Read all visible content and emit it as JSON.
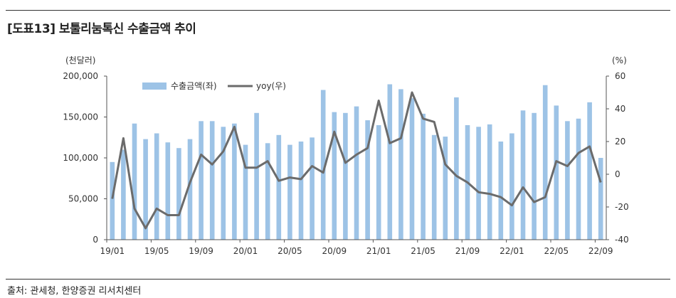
{
  "header": {
    "title": "[도표13] 보툴리눔톡신 수출금액 추이"
  },
  "footer": {
    "source": "출처: 관세청, 한양증권 리서치센터"
  },
  "colors": {
    "bar": "#9dc3e6",
    "line": "#6b6b6b",
    "axis": "#555555"
  },
  "chart_data": {
    "type": "bar",
    "y_unit_left": "(천달러)",
    "y_unit_right": "(%)",
    "ylim_left": [
      0,
      200000
    ],
    "ylim_right": [
      -40,
      60
    ],
    "yticks_left": [
      "200,000",
      "150,000",
      "100,000",
      "50,000",
      "0"
    ],
    "yticks_right": [
      "60",
      "40",
      "20",
      "0",
      "-20",
      "-40"
    ],
    "x_tick_labels": [
      "19/01",
      "19/05",
      "19/09",
      "20/01",
      "20/05",
      "20/09",
      "21/01",
      "21/05",
      "21/09",
      "22/01",
      "22/05",
      "22/09"
    ],
    "categories": [
      "19/01",
      "19/02",
      "19/03",
      "19/04",
      "19/05",
      "19/06",
      "19/07",
      "19/08",
      "19/09",
      "19/10",
      "19/11",
      "19/12",
      "20/01",
      "20/02",
      "20/03",
      "20/04",
      "20/05",
      "20/06",
      "20/07",
      "20/08",
      "20/09",
      "20/10",
      "20/11",
      "20/12",
      "21/01",
      "21/02",
      "21/03",
      "21/04",
      "21/05",
      "21/06",
      "21/07",
      "21/08",
      "21/09",
      "21/10",
      "21/11",
      "21/12",
      "22/01",
      "22/02",
      "22/03",
      "22/04",
      "22/05",
      "22/06",
      "22/07",
      "22/08",
      "22/09"
    ],
    "series": [
      {
        "name": "수출금액(좌)",
        "kind": "bar",
        "axis": "left",
        "values": [
          95000,
          110000,
          142000,
          123000,
          130000,
          119000,
          112000,
          123000,
          145000,
          145000,
          138000,
          142000,
          116000,
          155000,
          118000,
          128000,
          116000,
          120000,
          125000,
          183000,
          156000,
          155000,
          163000,
          146000,
          140000,
          190000,
          184000,
          173000,
          154000,
          128000,
          126000,
          174000,
          140000,
          138000,
          141000,
          120000,
          130000,
          158000,
          155000,
          189000,
          164000,
          145000,
          148000,
          168000,
          100000
        ]
      },
      {
        "name": "yoy(우)",
        "kind": "line",
        "axis": "right",
        "values": [
          -15,
          22,
          -21,
          -33,
          -21,
          -25,
          -25,
          -5,
          12,
          6,
          14,
          29,
          4,
          4,
          8,
          -4,
          -2,
          -3,
          5,
          1,
          26,
          7,
          12,
          16,
          45,
          19,
          22,
          50,
          34,
          32,
          6,
          -1,
          -5,
          -11,
          -12,
          -14,
          -19,
          -8,
          -17,
          -14,
          8,
          5,
          13,
          17,
          -5
        ]
      }
    ]
  }
}
